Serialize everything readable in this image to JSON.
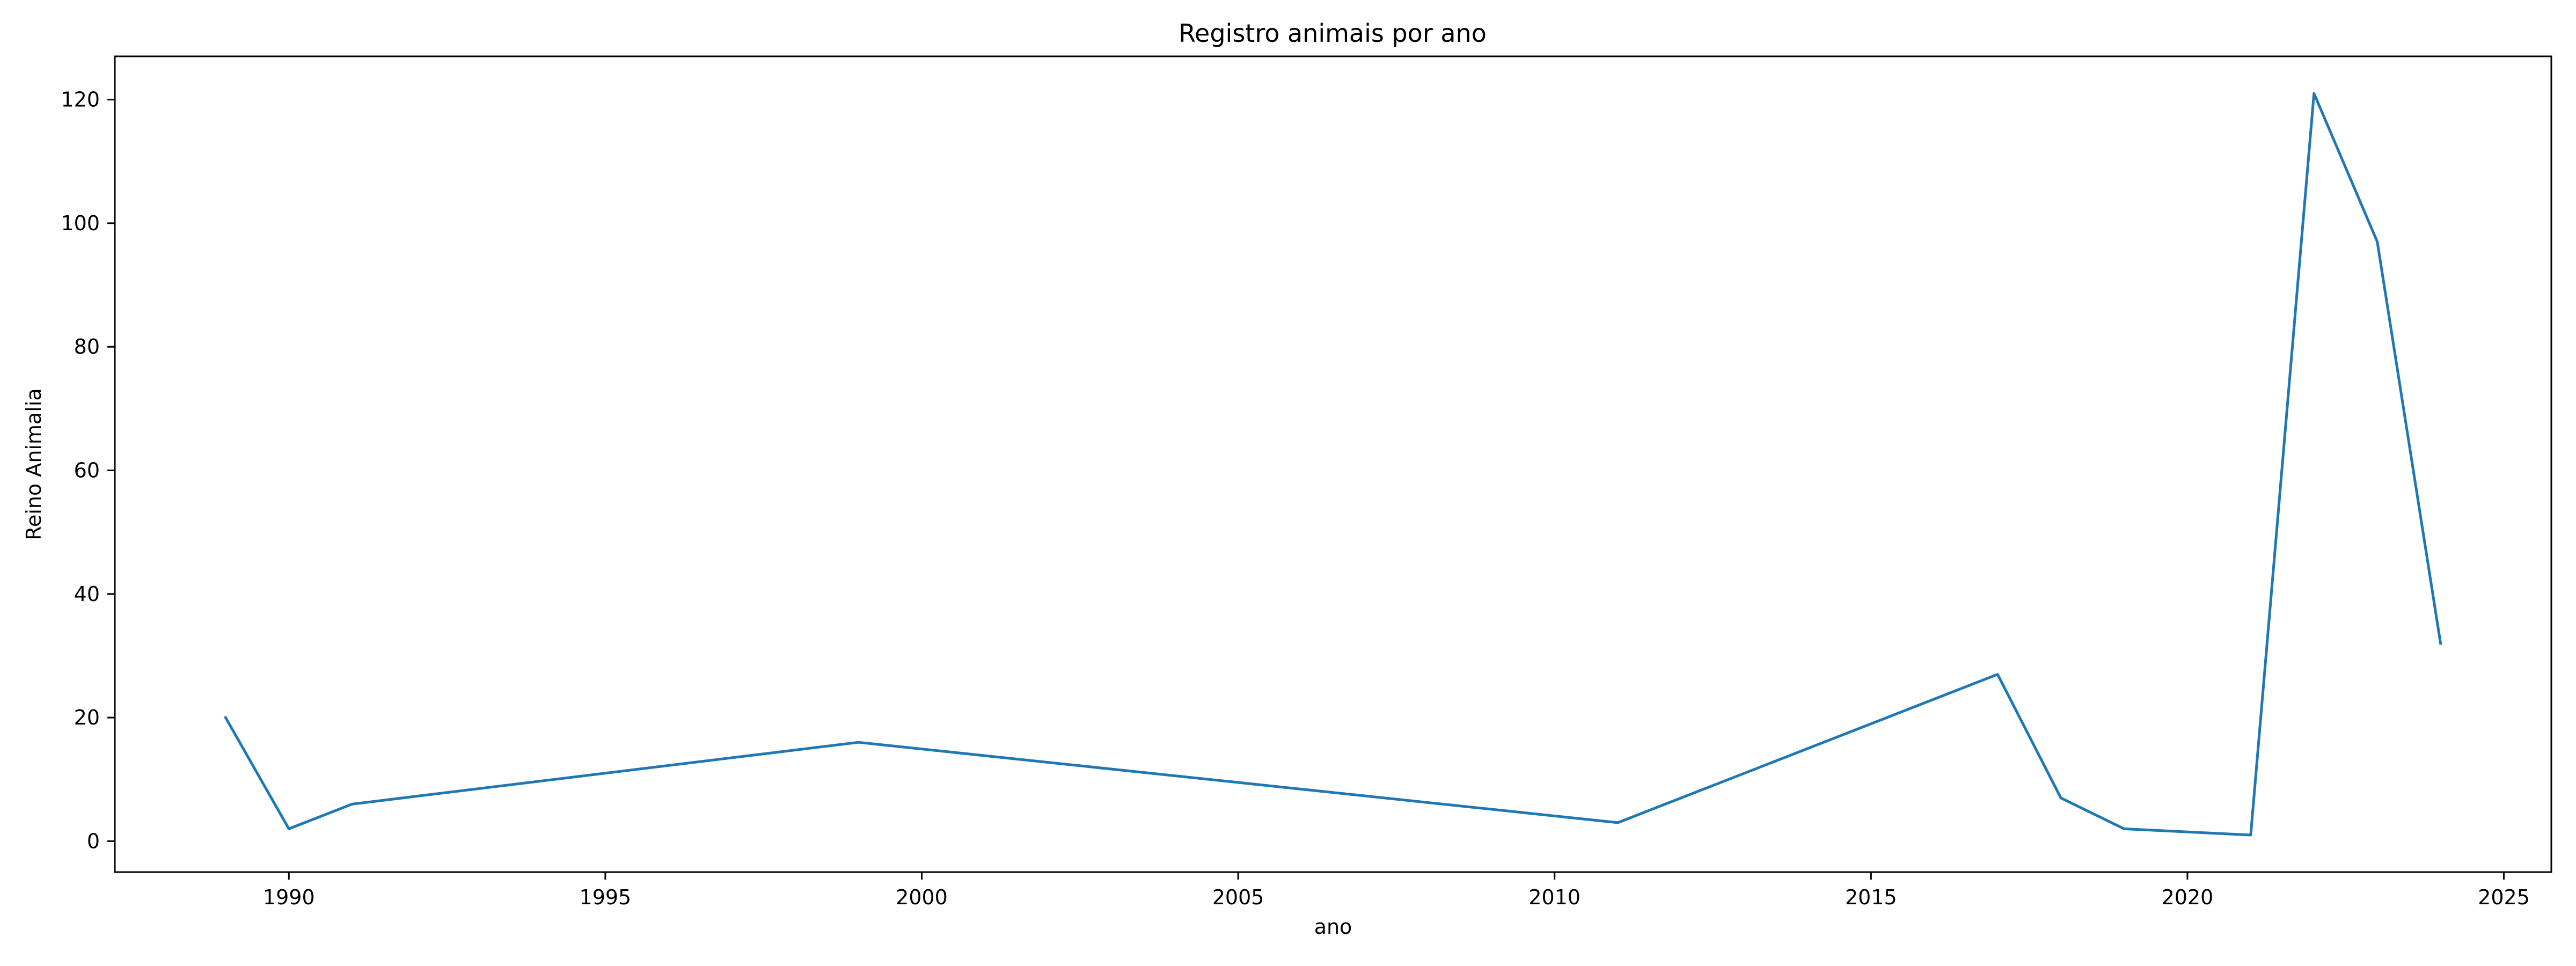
{
  "chart_data": {
    "type": "line",
    "title": "Registro animais por ano",
    "xlabel": "ano",
    "ylabel": "Reino Animalia",
    "xlim": [
      1987.25,
      2025.75
    ],
    "ylim": [
      -5,
      127
    ],
    "x_ticks": [
      1990,
      1995,
      2000,
      2005,
      2010,
      2015,
      2020,
      2025
    ],
    "y_ticks": [
      0,
      20,
      40,
      60,
      80,
      100,
      120
    ],
    "grid": false,
    "line_color": "#1f77b4",
    "series": [
      {
        "x": [
          1989,
          1990,
          1991,
          1999,
          2011,
          2017,
          2018,
          2019,
          2021,
          2022,
          2023,
          2024
        ],
        "y": [
          20,
          2,
          6,
          16,
          3,
          27,
          7,
          2,
          1,
          121,
          97,
          32
        ]
      }
    ]
  }
}
